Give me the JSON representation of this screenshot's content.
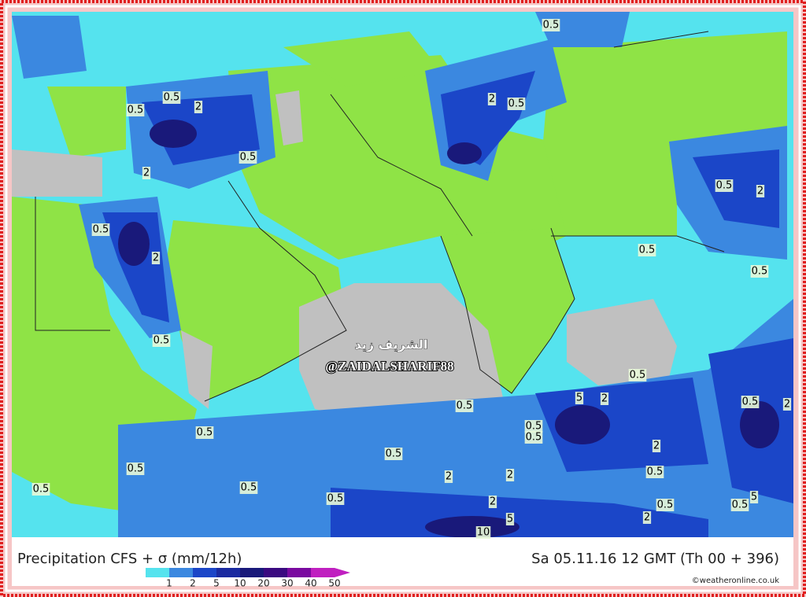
{
  "legend": {
    "title": "Precipitation CFS + σ (mm/12h)",
    "ticks": [
      "1",
      "2",
      "5",
      "10",
      "20",
      "30",
      "40",
      "50"
    ],
    "colors": [
      "#55e3ee",
      "#3b88e0",
      "#1b46c8",
      "#1a2aa0",
      "#19197a",
      "#3a0a80",
      "#7a0aa0",
      "#c020c0"
    ]
  },
  "valid_time": "Sa 05.11.16 12 GMT (Th 00 + 396)",
  "copyright": "©weatheronline.co.uk",
  "watermark": {
    "arabic": "الشريف زيد",
    "handle": "@ZAIDALSHARIF88"
  },
  "contour_labels": [
    "0.5",
    "0.5",
    "2",
    "0.5",
    "2",
    "0.5",
    "2",
    "0.5",
    "0.5",
    "2",
    "0.5",
    "2",
    "0.5",
    "0.5",
    "0.5",
    "0.5",
    "5",
    "2",
    "0.5",
    "0.5",
    "0.5",
    "0.5",
    "2",
    "0.5",
    "0.5",
    "2",
    "0.5",
    "0.5",
    "2",
    "2",
    "0.5",
    "0.5",
    "0.5",
    "2",
    "0.5",
    "0.5",
    "5",
    "5",
    "2",
    "10"
  ]
}
